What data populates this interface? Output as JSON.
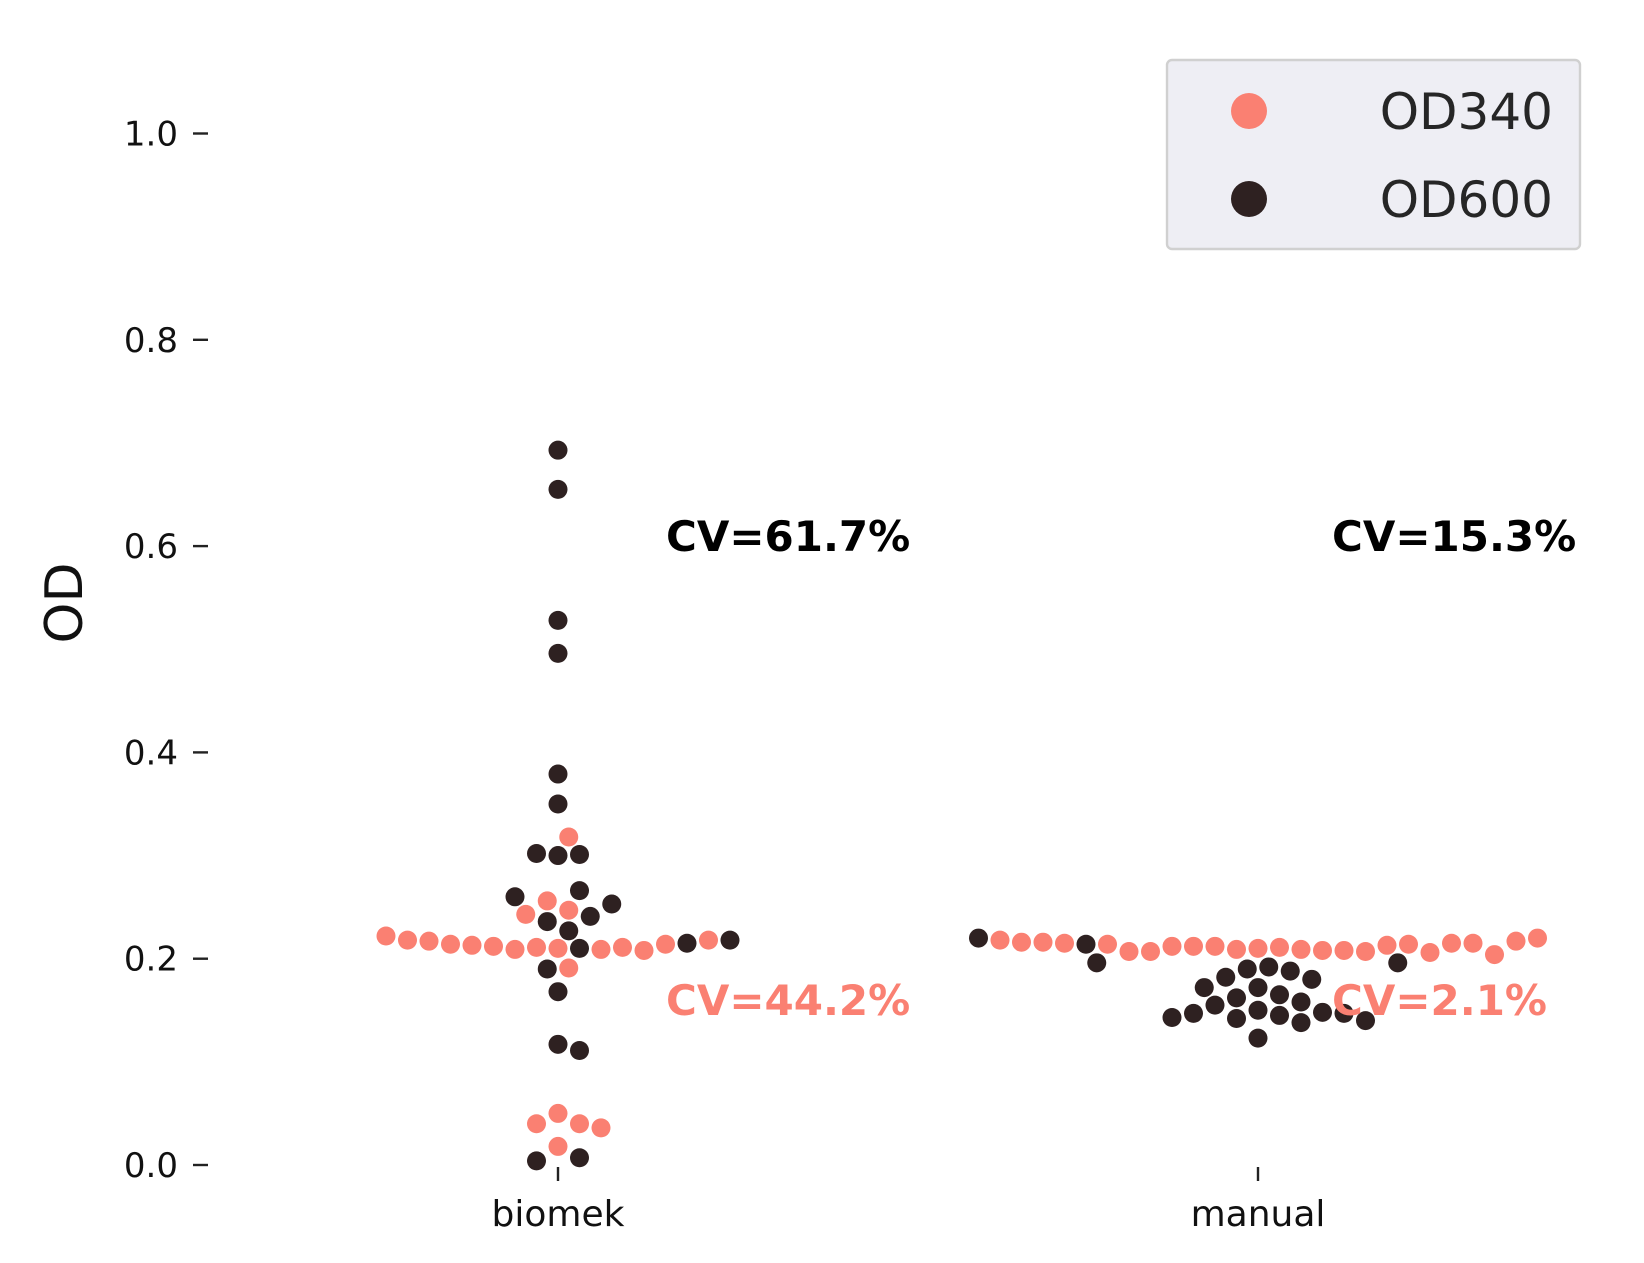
{
  "chart_data": {
    "type": "scatter",
    "ylabel": "OD",
    "ylim": [
      0.0,
      1.05
    ],
    "yticks": [
      "0.0",
      "0.2",
      "0.4",
      "0.6",
      "0.8",
      "1.0"
    ],
    "yticks_values": [
      0.0,
      0.2,
      0.4,
      0.6,
      0.8,
      1.0
    ],
    "categories": [
      "biomek",
      "manual"
    ],
    "grid": false,
    "legend_position": "top-right",
    "series": [
      {
        "name": "OD340",
        "color": "#FA8072",
        "values": {
          "biomek": [
            0.218,
            0.217,
            0.214,
            0.212,
            0.211,
            0.209,
            0.208,
            0.21,
            0.209,
            0.211,
            0.213,
            0.214,
            0.218,
            0.222,
            0.243,
            0.247,
            0.256,
            0.318,
            0.191,
            0.05,
            0.04,
            0.036,
            0.04,
            0.018
          ],
          "manual": [
            0.217,
            0.216,
            0.214,
            0.212,
            0.211,
            0.209,
            0.208,
            0.207,
            0.207,
            0.204,
            0.218,
            0.215,
            0.214,
            0.213,
            0.212,
            0.22,
            0.206,
            0.207,
            0.208,
            0.209,
            0.21,
            0.212,
            0.215,
            0.215,
            0.216
          ]
        }
      },
      {
        "name": "OD600",
        "color": "#2E2121",
        "values": {
          "biomek": [
            0.693,
            0.655,
            0.528,
            0.496,
            0.379,
            0.35,
            0.302,
            0.301,
            0.3,
            0.266,
            0.26,
            0.253,
            0.241,
            0.236,
            0.227,
            0.218,
            0.215,
            0.21,
            0.19,
            0.168,
            0.117,
            0.111,
            0.007,
            0.004
          ],
          "manual": [
            0.22,
            0.214,
            0.196,
            0.196,
            0.192,
            0.19,
            0.188,
            0.182,
            0.18,
            0.172,
            0.172,
            0.165,
            0.162,
            0.158,
            0.155,
            0.15,
            0.148,
            0.147,
            0.147,
            0.145,
            0.143,
            0.142,
            0.14,
            0.138,
            0.123
          ]
        }
      }
    ],
    "annotations": [
      {
        "category": "biomek",
        "series": "OD600",
        "text": "CV=61.7%",
        "y": 0.61
      },
      {
        "category": "biomek",
        "series": "OD340",
        "text": "CV=44.2%",
        "y": 0.16
      },
      {
        "category": "manual",
        "series": "OD600",
        "text": "CV=15.3%",
        "y": 0.61
      },
      {
        "category": "manual",
        "series": "OD340",
        "text": "CV=2.1%",
        "y": 0.16
      }
    ]
  }
}
